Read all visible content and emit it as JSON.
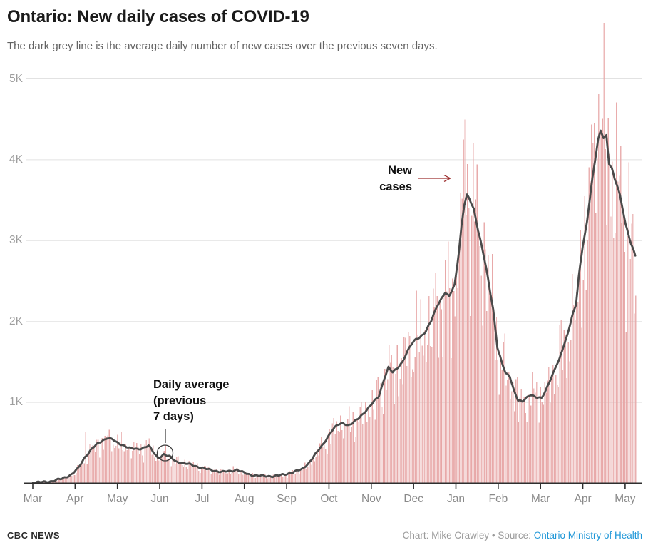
{
  "header": {
    "title": "Ontario: New daily cases of COVID-19",
    "subtitle": "The dark grey line is the average daily number of new cases over the previous seven days."
  },
  "footer": {
    "brand": "CBC NEWS",
    "credit_prefix": "Chart: Mike Crawley • Source: ",
    "source_link": "Ontario Ministry of Health"
  },
  "annotations": {
    "new_cases": {
      "line1": "New",
      "line2": "cases"
    },
    "daily_average": {
      "line1": "Daily average",
      "line2": "(previous",
      "line3": "7 days)"
    }
  },
  "colors": {
    "bars": "#e7a6a6",
    "avg_line": "#4a4a4a",
    "grid": "#e2e2e2",
    "axis": "#2f2f2f",
    "tick_label": "#8a8a8a",
    "annotation_arrow": "#9c2d2d",
    "link_blue": "#1f97d8"
  },
  "chart_data": {
    "type": "bar",
    "title": "Ontario: New daily cases of COVID-19",
    "x_unit": "days since Mar 1, 2020 (chart ends mid-May 2021)",
    "x_range": [
      0,
      438
    ],
    "ylim": [
      0,
      5000
    ],
    "y_tick_labels": [
      "5K",
      "4K",
      "3K",
      "2K",
      "1K"
    ],
    "y_tick_values": [
      5000,
      4000,
      3000,
      2000,
      1000
    ],
    "x_tick_labels": [
      "Mar",
      "Apr",
      "May",
      "Jun",
      "Jul",
      "Aug",
      "Sep",
      "Oct",
      "Nov",
      "Dec",
      "Jan",
      "Feb",
      "Mar",
      "Apr",
      "May"
    ],
    "grid": true,
    "legend": "annotations instead of legend",
    "series": [
      {
        "name": "New cases",
        "type": "bar",
        "color": "#e7a6a6",
        "note": "daily reported cases; bars follow the 7-day average with day-to-day noise",
        "notable_values": {
          "38": 640,
          "55": 660,
          "311": 3520,
          "312": 4250,
          "315": 3945,
          "407": 4450,
          "410": 4810,
          "413": 4505,
          "436": 2100,
          "437": 2320
        }
      },
      {
        "name": "Daily average (previous 7 days)",
        "type": "line",
        "color": "#4a4a4a",
        "points": [
          [
            0,
            8
          ],
          [
            7,
            14
          ],
          [
            14,
            28
          ],
          [
            21,
            55
          ],
          [
            28,
            110
          ],
          [
            33,
            185
          ],
          [
            38,
            330
          ],
          [
            43,
            430
          ],
          [
            48,
            500
          ],
          [
            54,
            565
          ],
          [
            58,
            540
          ],
          [
            61,
            500
          ],
          [
            66,
            470
          ],
          [
            71,
            430
          ],
          [
            76,
            420
          ],
          [
            80,
            440
          ],
          [
            84,
            465
          ],
          [
            88,
            370
          ],
          [
            91,
            310
          ],
          [
            95,
            360
          ],
          [
            99,
            330
          ],
          [
            104,
            270
          ],
          [
            110,
            245
          ],
          [
            115,
            230
          ],
          [
            121,
            200
          ],
          [
            126,
            175
          ],
          [
            131,
            160
          ],
          [
            137,
            140
          ],
          [
            143,
            150
          ],
          [
            148,
            170
          ],
          [
            153,
            130
          ],
          [
            158,
            105
          ],
          [
            163,
            95
          ],
          [
            169,
            88
          ],
          [
            175,
            90
          ],
          [
            180,
            100
          ],
          [
            184,
            115
          ],
          [
            189,
            140
          ],
          [
            195,
            170
          ],
          [
            200,
            250
          ],
          [
            206,
            380
          ],
          [
            210,
            470
          ],
          [
            213,
            550
          ],
          [
            217,
            650
          ],
          [
            221,
            720
          ],
          [
            225,
            750
          ],
          [
            229,
            715
          ],
          [
            232,
            740
          ],
          [
            236,
            800
          ],
          [
            240,
            870
          ],
          [
            243,
            920
          ],
          [
            247,
            1000
          ],
          [
            251,
            1080
          ],
          [
            255,
            1300
          ],
          [
            258,
            1430
          ],
          [
            261,
            1370
          ],
          [
            264,
            1420
          ],
          [
            268,
            1500
          ],
          [
            271,
            1600
          ],
          [
            274,
            1700
          ],
          [
            278,
            1790
          ],
          [
            281,
            1810
          ],
          [
            285,
            1870
          ],
          [
            289,
            2010
          ],
          [
            293,
            2190
          ],
          [
            296,
            2270
          ],
          [
            299,
            2350
          ],
          [
            302,
            2310
          ],
          [
            306,
            2460
          ],
          [
            309,
            2850
          ],
          [
            311,
            3180
          ],
          [
            313,
            3440
          ],
          [
            315,
            3560
          ],
          [
            317,
            3510
          ],
          [
            320,
            3390
          ],
          [
            323,
            3130
          ],
          [
            326,
            2900
          ],
          [
            329,
            2650
          ],
          [
            331,
            2450
          ],
          [
            334,
            2150
          ],
          [
            337,
            1680
          ],
          [
            340,
            1500
          ],
          [
            343,
            1360
          ],
          [
            346,
            1330
          ],
          [
            349,
            1150
          ],
          [
            352,
            1020
          ],
          [
            355,
            1005
          ],
          [
            358,
            1060
          ],
          [
            361,
            1100
          ],
          [
            365,
            1060
          ],
          [
            369,
            1050
          ],
          [
            372,
            1150
          ],
          [
            375,
            1270
          ],
          [
            377,
            1340
          ],
          [
            380,
            1460
          ],
          [
            382,
            1530
          ],
          [
            385,
            1700
          ],
          [
            388,
            1850
          ],
          [
            391,
            2050
          ],
          [
            394,
            2200
          ],
          [
            396,
            2550
          ],
          [
            399,
            2950
          ],
          [
            402,
            3230
          ],
          [
            405,
            3650
          ],
          [
            408,
            4000
          ],
          [
            410,
            4250
          ],
          [
            412,
            4360
          ],
          [
            414,
            4280
          ],
          [
            416,
            4300
          ],
          [
            418,
            3950
          ],
          [
            420,
            3890
          ],
          [
            422,
            3760
          ],
          [
            424,
            3680
          ],
          [
            426,
            3560
          ],
          [
            428,
            3390
          ],
          [
            430,
            3200
          ],
          [
            432,
            3080
          ],
          [
            434,
            2950
          ],
          [
            436,
            2870
          ],
          [
            437,
            2820
          ]
        ],
        "annotated_point": {
          "day": 96,
          "value": 360,
          "label": "Daily average (previous 7 days)"
        },
        "peaks": {
          "wave1_avg": 565,
          "wave2_avg": 3560,
          "wave3_avg": 4360,
          "record_daily": 4810
        }
      }
    ]
  }
}
